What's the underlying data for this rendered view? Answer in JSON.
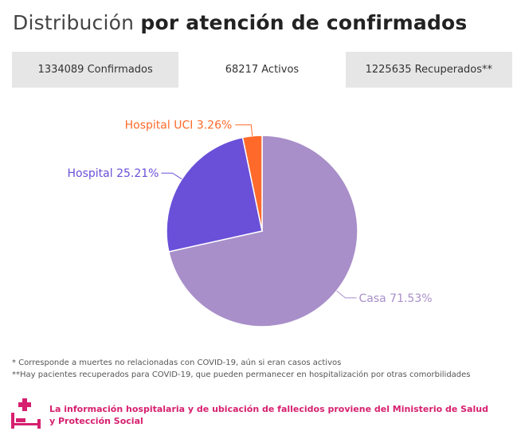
{
  "title": {
    "prefix": "Distribución",
    "emphasis": "por atención de confirmados"
  },
  "tabs": [
    {
      "label": "1334089 Confirmados"
    },
    {
      "label": "68217 Activos"
    },
    {
      "label": "1225635 Recuperados**"
    }
  ],
  "active_tab": 1,
  "chart_data": {
    "type": "pie",
    "slices": [
      {
        "label": "Casa 71.53%",
        "value": 71.53,
        "color": "#a98fc9"
      },
      {
        "label": "Hospital 25.21%",
        "value": 25.21,
        "color": "#6a50d8"
      },
      {
        "label": "Hospital UCI 3.26%",
        "value": 3.26,
        "color": "#ff6a2a"
      }
    ],
    "start": "top",
    "direction": "clockwise"
  },
  "footnotes": {
    "note1": "* Corresponde a muertes no relacionadas con COVID-19, aún si eran casos activos",
    "note2": "**Hay pacientes recuperados para COVID-19, que pueden permanecer en hospitalización por otras comorbilidades"
  },
  "info": {
    "text": "La información hospitalaria y de ubicación de fallecidos proviene del Ministerio de Salud y Protección Social",
    "icon": "hospital-bed-icon",
    "color": "#d6206f"
  }
}
